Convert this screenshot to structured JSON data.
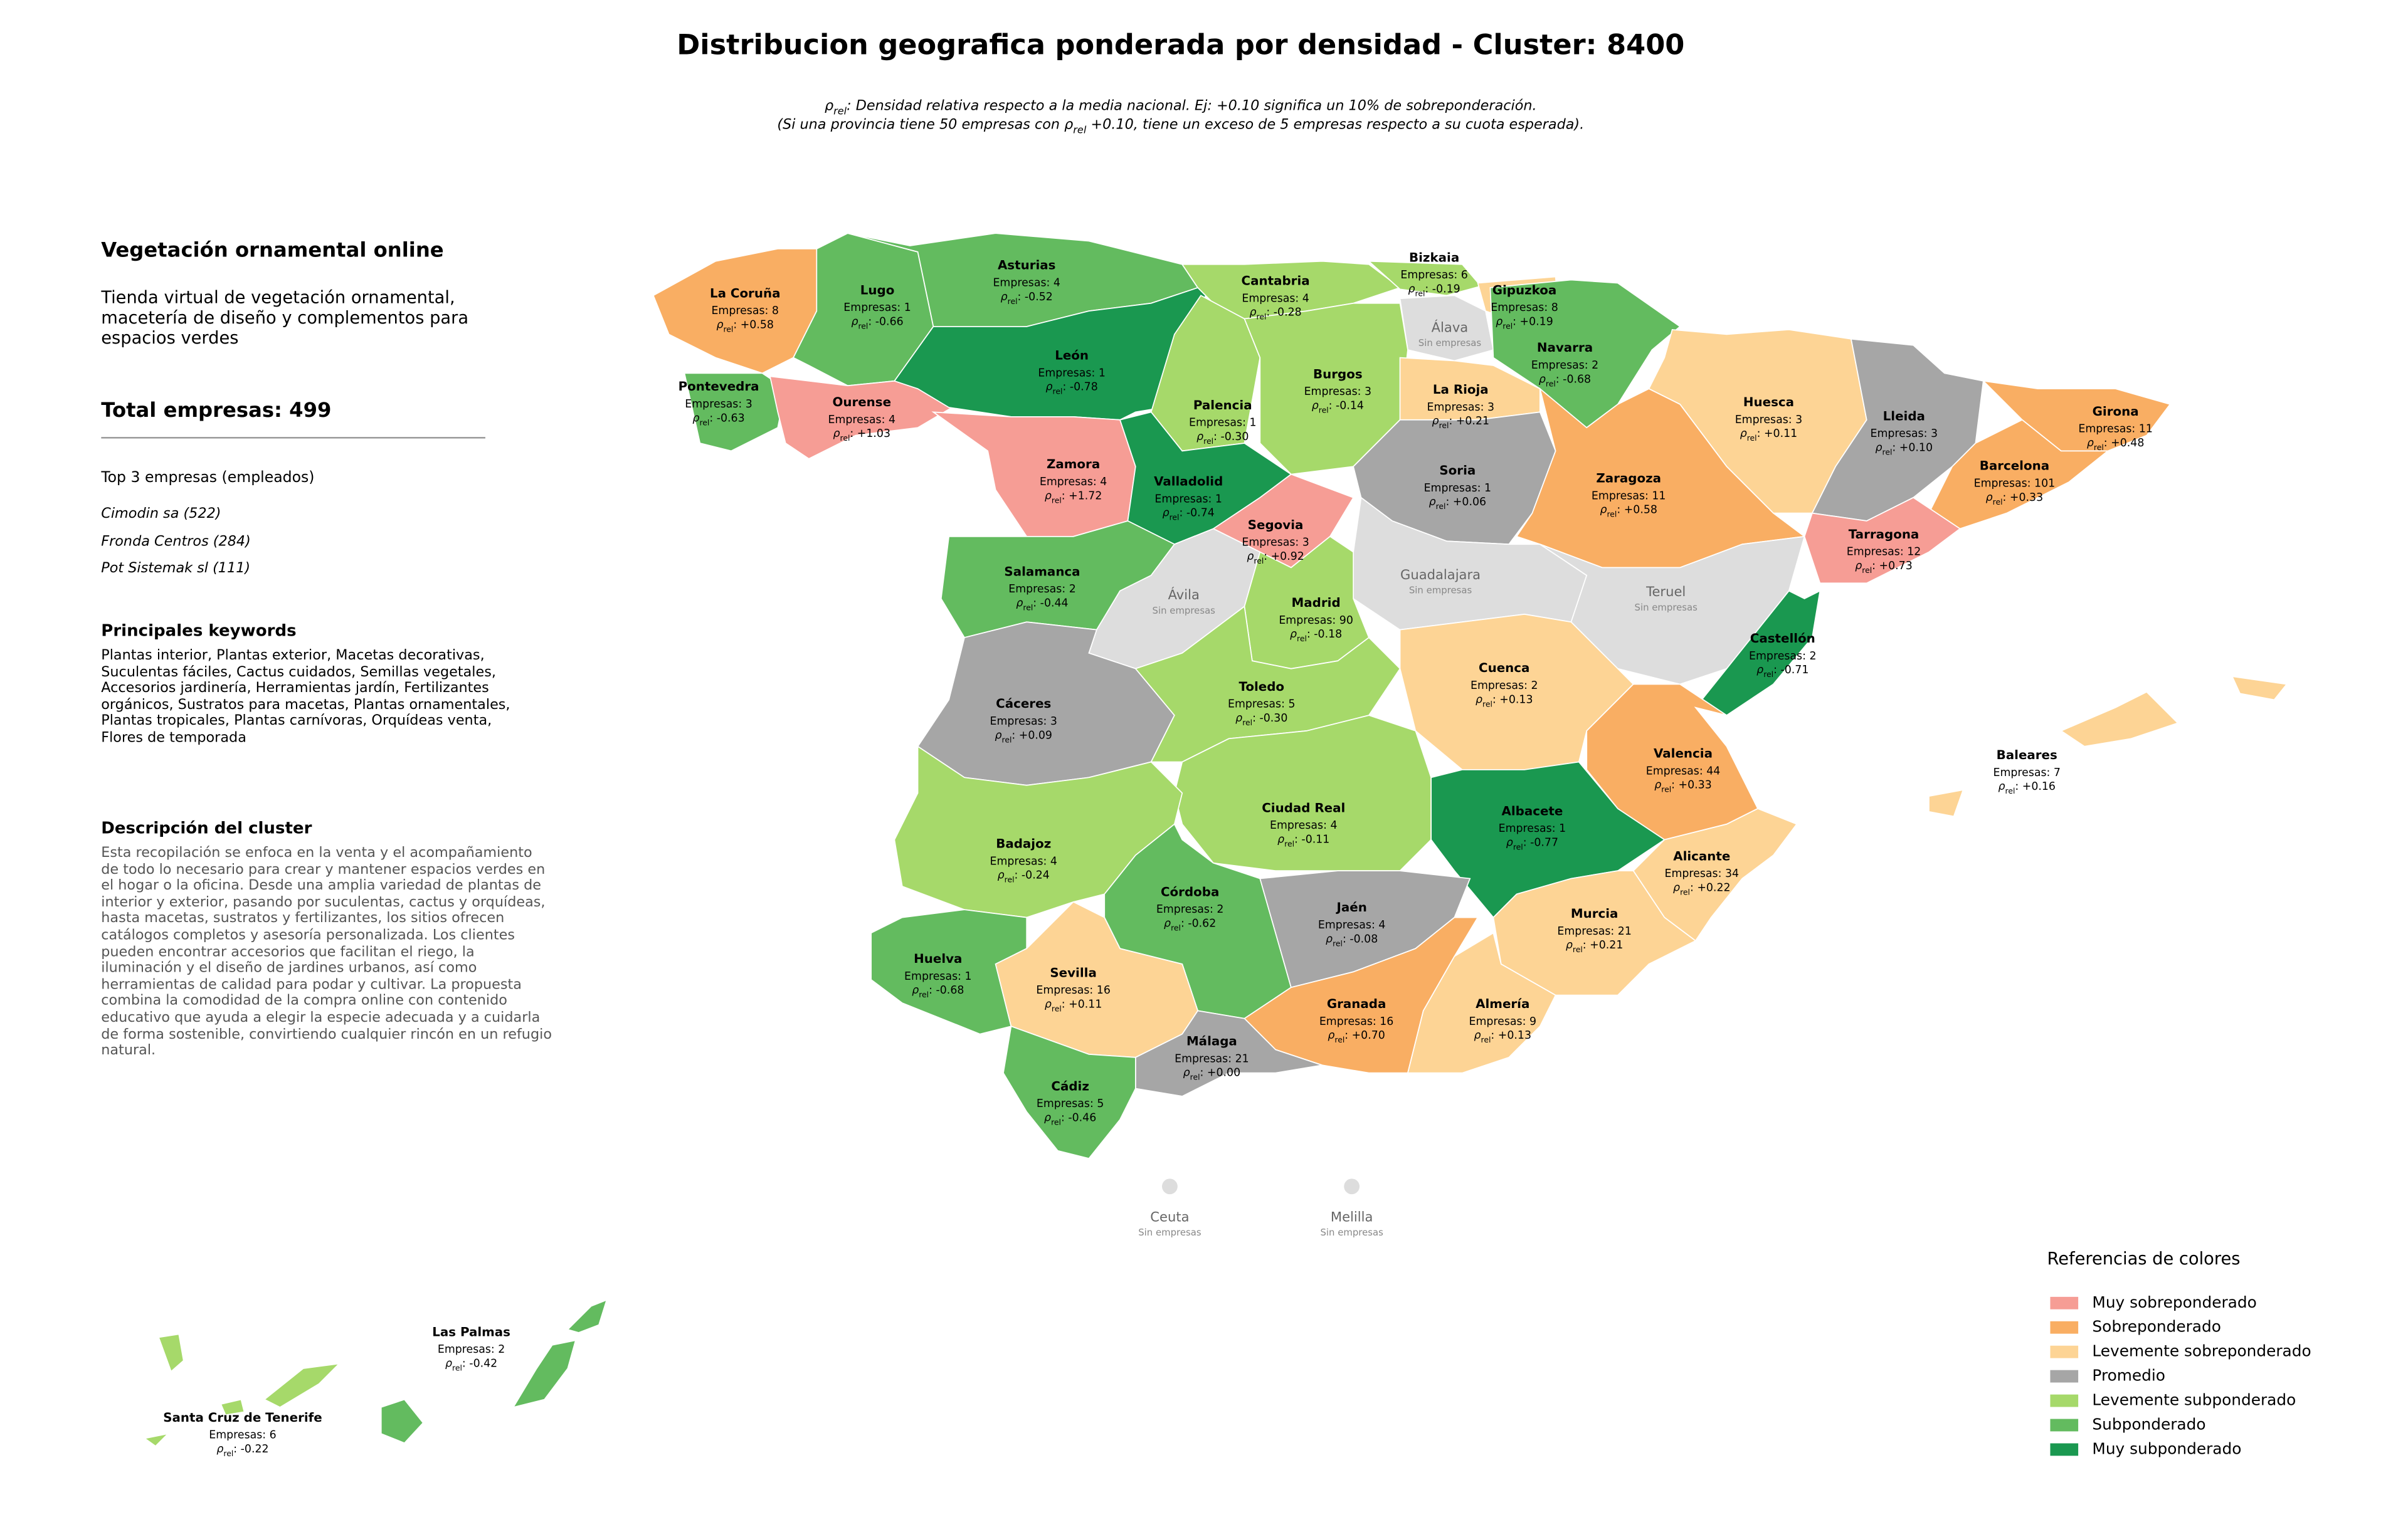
{
  "title": "Distribucion geografica ponderada por densidad - Cluster: 8400",
  "subtitle": [
    [
      {
        "text": "ρ"
      },
      {
        "sub": "rel"
      },
      {
        "text": ": Densidad relativa respecto a la media nacional. Ej: +0.10 significa un 10% de sobreponderación."
      }
    ],
    [
      {
        "text": "(Si una provincia tiene 50 empresas con ρ"
      },
      {
        "sub": "rel"
      },
      {
        "text": " +0.10, tiene un exceso de 5 empresas respecto a su cuota esperada)."
      }
    ]
  ],
  "density_symbol": "ρ",
  "density_sub": "rel",
  "density_separator": ": ",
  "sidebar": {
    "title": "Vegetación ornamental online",
    "description": "Tienda virtual de vegetación ornamental, macetería de diseño y complementos para espacios verdes",
    "total": "Total empresas: 499",
    "top_title": "Top 3 empresas (empleados)",
    "top": [
      "Cimodin sa (522)",
      "Fronda Centros (284)",
      "Pot Sistemak sl (111)"
    ],
    "keywords_title": "Principales keywords",
    "keywords": "Plantas interior, Plantas exterior, Macetas decorativas, Suculentas fáciles, Cactus cuidados, Semillas vegetales, Accesorios jardinería, Herramientas jardín, Fertilizantes orgánicos, Sustratos para macetas, Plantas ornamentales, Plantas tropicales, Plantas carnívoras, Orquídeas venta, Flores de temporada",
    "cluster_title": "Descripción del cluster",
    "cluster_text": "Esta recopilación se enfoca en la venta y el acompañamiento de todo lo necesario para crear y mantener espacios verdes en el hogar o la oficina. Desde una amplia variedad de plantas de interior y exterior, pasando por suculentas, cactus y orquídeas, hasta macetas, sustratos y fertilizantes, los sitios ofrecen catálogos completos y asesoría personalizada. Los clientes pueden encontrar accesorios que facilitan el riego, la iluminación y el diseño de jardines urbanos, así como herramientas de calidad para podar y cultivar. La propuesta combina la comodidad de la compra online con contenido educativo que ayuda a elegir la especie adecuada y a cuidarla de forma sostenible, convirtiendo cualquier rincón en un refugio natural."
  },
  "provinces": [
    {
      "name": "La Coruña",
      "companies": "Empresas: 8",
      "density": "+0.58",
      "color": "#f9ae63"
    },
    {
      "name": "Lugo",
      "companies": "Empresas: 1",
      "density": "-0.66",
      "color": "#63bb5f"
    },
    {
      "name": "Asturias",
      "companies": "Empresas: 4",
      "density": "-0.52",
      "color": "#63bb5f"
    },
    {
      "name": "Cantabria",
      "companies": "Empresas: 4",
      "density": "-0.28",
      "color": "#a6d96a"
    },
    {
      "name": "Bizkaia",
      "companies": "Empresas: 6",
      "density": "-0.19",
      "color": "#a6d96a"
    },
    {
      "name": "Gipuzkoa",
      "companies": "Empresas: 8",
      "density": "+0.19",
      "color": "#fdd495"
    },
    {
      "name": "Álava",
      "companies": "Sin empresas",
      "color": "#dddddd"
    },
    {
      "name": "Navarra",
      "companies": "Empresas: 2",
      "density": "-0.68",
      "color": "#63bb5f"
    },
    {
      "name": "Pontevedra",
      "companies": "Empresas: 3",
      "density": "-0.63",
      "color": "#63bb5f"
    },
    {
      "name": "Ourense",
      "companies": "Empresas: 4",
      "density": "+1.03",
      "color": "#f69d95"
    },
    {
      "name": "León",
      "companies": "Empresas: 1",
      "density": "-0.78",
      "color": "#1a9850"
    },
    {
      "name": "Palencia",
      "companies": "Empresas: 1",
      "density": "-0.30",
      "color": "#a6d96a"
    },
    {
      "name": "Burgos",
      "companies": "Empresas: 3",
      "density": "-0.14",
      "color": "#a6d96a"
    },
    {
      "name": "La Rioja",
      "companies": "Empresas: 3",
      "density": "+0.21",
      "color": "#fdd495"
    },
    {
      "name": "Huesca",
      "companies": "Empresas: 3",
      "density": "+0.11",
      "color": "#fdd495"
    },
    {
      "name": "Lleida",
      "companies": "Empresas: 3",
      "density": "+0.10",
      "color": "#a6a6a6"
    },
    {
      "name": "Girona",
      "companies": "Empresas: 11",
      "density": "+0.48",
      "color": "#f9ae63"
    },
    {
      "name": "Barcelona",
      "companies": "Empresas: 101",
      "density": "+0.33",
      "color": "#f9ae63"
    },
    {
      "name": "Zamora",
      "companies": "Empresas: 4",
      "density": "+1.72",
      "color": "#f69d95"
    },
    {
      "name": "Valladolid",
      "companies": "Empresas: 1",
      "density": "-0.74",
      "color": "#1a9850"
    },
    {
      "name": "Soria",
      "companies": "Empresas: 1",
      "density": "+0.06",
      "color": "#a6a6a6"
    },
    {
      "name": "Zaragoza",
      "companies": "Empresas: 11",
      "density": "+0.58",
      "color": "#f9ae63"
    },
    {
      "name": "Segovia",
      "companies": "Empresas: 3",
      "density": "+0.92",
      "color": "#f69d95"
    },
    {
      "name": "Tarragona",
      "companies": "Empresas: 12",
      "density": "+0.73",
      "color": "#f69d95"
    },
    {
      "name": "Salamanca",
      "companies": "Empresas: 2",
      "density": "-0.44",
      "color": "#63bb5f"
    },
    {
      "name": "Ávila",
      "companies": "Sin empresas",
      "color": "#dddddd"
    },
    {
      "name": "Guadalajara",
      "companies": "Sin empresas",
      "color": "#dddddd"
    },
    {
      "name": "Teruel",
      "companies": "Sin empresas",
      "color": "#dddddd"
    },
    {
      "name": "Madrid",
      "companies": "Empresas: 90",
      "density": "-0.18",
      "color": "#a6d96a"
    },
    {
      "name": "Castellón",
      "companies": "Empresas: 2",
      "density": "-0.71",
      "color": "#1a9850"
    },
    {
      "name": "Cáceres",
      "companies": "Empresas: 3",
      "density": "+0.09",
      "color": "#a6a6a6"
    },
    {
      "name": "Toledo",
      "companies": "Empresas: 5",
      "density": "-0.30",
      "color": "#a6d96a"
    },
    {
      "name": "Cuenca",
      "companies": "Empresas: 2",
      "density": "+0.13",
      "color": "#fdd495"
    },
    {
      "name": "Valencia",
      "companies": "Empresas: 44",
      "density": "+0.33",
      "color": "#f9ae63"
    },
    {
      "name": "Baleares",
      "companies": "Empresas: 7",
      "density": "+0.16",
      "color": "#fdd495"
    },
    {
      "name": "Ciudad Real",
      "companies": "Empresas: 4",
      "density": "-0.11",
      "color": "#a6d96a"
    },
    {
      "name": "Albacete",
      "companies": "Empresas: 1",
      "density": "-0.77",
      "color": "#1a9850"
    },
    {
      "name": "Badajoz",
      "companies": "Empresas: 4",
      "density": "-0.24",
      "color": "#a6d96a"
    },
    {
      "name": "Alicante",
      "companies": "Empresas: 34",
      "density": "+0.22",
      "color": "#fdd495"
    },
    {
      "name": "Córdoba",
      "companies": "Empresas: 2",
      "density": "-0.62",
      "color": "#63bb5f"
    },
    {
      "name": "Jaén",
      "companies": "Empresas: 4",
      "density": "-0.08",
      "color": "#a6a6a6"
    },
    {
      "name": "Murcia",
      "companies": "Empresas: 21",
      "density": "+0.21",
      "color": "#fdd495"
    },
    {
      "name": "Huelva",
      "companies": "Empresas: 1",
      "density": "-0.68",
      "color": "#63bb5f"
    },
    {
      "name": "Sevilla",
      "companies": "Empresas: 16",
      "density": "+0.11",
      "color": "#fdd495"
    },
    {
      "name": "Granada",
      "companies": "Empresas: 16",
      "density": "+0.70",
      "color": "#f9ae63"
    },
    {
      "name": "Almería",
      "companies": "Empresas: 9",
      "density": "+0.13",
      "color": "#fdd495"
    },
    {
      "name": "Málaga",
      "companies": "Empresas: 21",
      "density": "+0.00",
      "color": "#a6a6a6"
    },
    {
      "name": "Cádiz",
      "companies": "Empresas: 5",
      "density": "-0.46",
      "color": "#63bb5f"
    },
    {
      "name": "Ceuta",
      "companies": "Sin empresas",
      "color": "#dddddd"
    },
    {
      "name": "Melilla",
      "companies": "Sin empresas",
      "color": "#dddddd"
    },
    {
      "name": "Las Palmas",
      "companies": "Empresas: 2",
      "density": "-0.42",
      "color": "#63bb5f"
    },
    {
      "name": "Santa Cruz de Tenerife",
      "companies": "Empresas: 6",
      "density": "-0.22",
      "color": "#a6d96a"
    }
  ],
  "legend": {
    "title": "Referencias de colores",
    "items": [
      {
        "label": "Muy sobreponderado",
        "color": "#f69d95"
      },
      {
        "label": "Sobreponderado",
        "color": "#f9ae63"
      },
      {
        "label": "Levemente sobreponderado",
        "color": "#fdd495"
      },
      {
        "label": "Promedio",
        "color": "#a6a6a6"
      },
      {
        "label": "Levemente subponderado",
        "color": "#a6d96a"
      },
      {
        "label": "Subponderado",
        "color": "#63bb5f"
      },
      {
        "label": "Muy subponderado",
        "color": "#1a9850"
      }
    ]
  }
}
